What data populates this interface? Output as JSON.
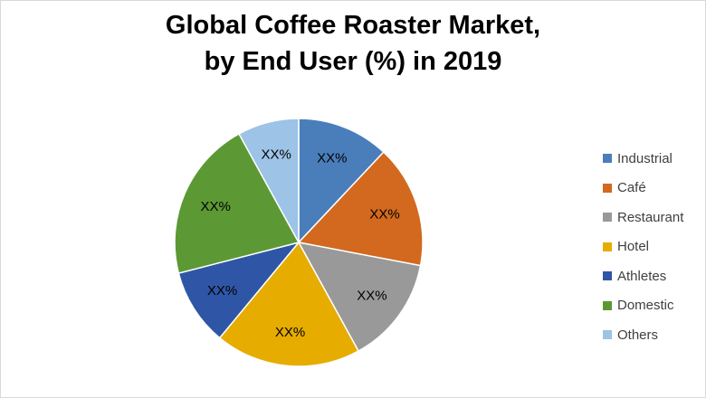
{
  "chart_data": {
    "type": "pie",
    "title_lines": [
      "Global Coffee Roaster Market,",
      "by End User (%) in 2019"
    ],
    "legend_position": "right",
    "slices": [
      {
        "label": "Industrial",
        "value": 12,
        "display": "XX%",
        "color": "#4a7ebb"
      },
      {
        "label": "Café",
        "value": 16,
        "display": "XX%",
        "color": "#d2691e"
      },
      {
        "label": "Restaurant",
        "value": 14,
        "display": "XX%",
        "color": "#999999"
      },
      {
        "label": "Hotel",
        "value": 19,
        "display": "XX%",
        "color": "#e6ac00"
      },
      {
        "label": "Athletes",
        "value": 10,
        "display": "XX%",
        "color": "#2f56a6"
      },
      {
        "label": "Domestic",
        "value": 21,
        "display": "XX%",
        "color": "#5c9934"
      },
      {
        "label": "Others",
        "value": 8,
        "display": "XX%",
        "color": "#9dc3e6"
      }
    ]
  }
}
